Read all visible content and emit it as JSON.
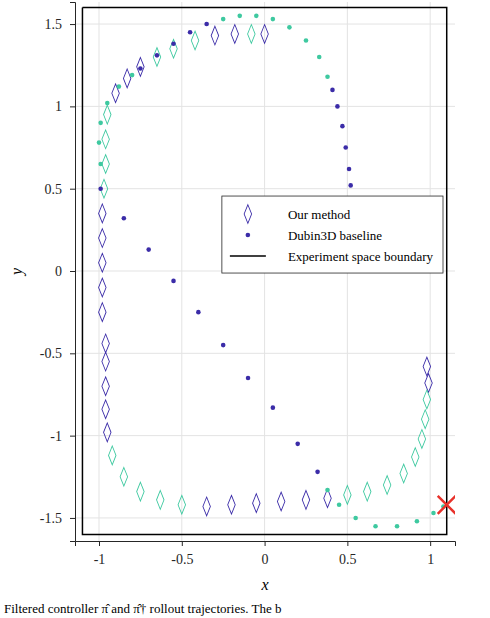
{
  "chart_data": {
    "type": "scatter",
    "x_label": "x",
    "y_label": "y",
    "caption": "Filtered controller π̂ and π̂† rollout trajectories. The b",
    "xlim": [
      -1.145,
      1.15
    ],
    "ylim": [
      -1.64,
      1.634
    ],
    "xticks": [
      -1,
      -0.5,
      0,
      0.5,
      1
    ],
    "yticks": [
      -1.5,
      -1,
      -0.5,
      0,
      0.5,
      1,
      1.5
    ],
    "grid": true,
    "legend": "center right",
    "series": [
      {
        "name": "Our method",
        "color": "#3b2ca8",
        "marker": "diamond",
        "x": [
          0.98,
          0.99,
          0.98,
          0.97,
          0.95,
          0.91,
          0.84,
          0.74,
          0.62,
          0.5,
          0.38,
          0.25,
          0.1,
          -0.05,
          -0.2,
          -0.35,
          -0.5,
          -0.63,
          -0.75,
          -0.85,
          -0.92,
          -0.95,
          -0.96,
          -0.96,
          -0.96,
          -0.96,
          -0.98,
          -0.98,
          -0.98,
          -0.98,
          -0.98,
          -0.97,
          -0.96,
          -0.96,
          -0.95,
          -0.9,
          -0.83,
          -0.75,
          -0.65,
          -0.55,
          -0.42,
          -0.3,
          -0.18,
          -0.08,
          0.0
        ],
        "values": [
          -0.58,
          -0.68,
          -0.78,
          -0.9,
          -1.02,
          -1.13,
          -1.23,
          -1.3,
          -1.34,
          -1.36,
          -1.38,
          -1.39,
          -1.4,
          -1.41,
          -1.42,
          -1.43,
          -1.42,
          -1.39,
          -1.34,
          -1.25,
          -1.12,
          -0.98,
          -0.84,
          -0.7,
          -0.55,
          -0.44,
          -0.25,
          -0.1,
          0.05,
          0.2,
          0.35,
          0.5,
          0.65,
          0.8,
          0.95,
          1.08,
          1.17,
          1.24,
          1.3,
          1.35,
          1.4,
          1.43,
          1.44,
          1.44,
          1.44
        ],
        "colors": [
          "#3b2ca8",
          "#3b2ca8",
          "#3ec9a0",
          "#3ec9a0",
          "#3ec9a0",
          "#3ec9a0",
          "#3ec9a0",
          "#3ec9a0",
          "#3ec9a0",
          "#3ec9a0",
          "#3b2ca8",
          "#3b2ca8",
          "#3b2ca8",
          "#3b2ca8",
          "#3b2ca8",
          "#3b2ca8",
          "#3ec9a0",
          "#3ec9a0",
          "#3ec9a0",
          "#3ec9a0",
          "#3ec9a0",
          "#3b2ca8",
          "#3b2ca8",
          "#3b2ca8",
          "#3b2ca8",
          "#3b2ca8",
          "#3b2ca8",
          "#3b2ca8",
          "#3b2ca8",
          "#3b2ca8",
          "#3b2ca8",
          "#3ec9a0",
          "#3ec9a0",
          "#3ec9a0",
          "#3ec9a0",
          "#3b2ca8",
          "#3b2ca8",
          "#3b2ca8",
          "#3ec9a0",
          "#3ec9a0",
          "#3ec9a0",
          "#3b2ca8",
          "#3b2ca8",
          "#3ec9a0",
          "#3b2ca8"
        ]
      },
      {
        "name": "Dubin3D baseline",
        "color": "#3b2ca8",
        "marker": "dot",
        "x": [
          0.52,
          0.51,
          0.49,
          0.47,
          0.44,
          0.41,
          0.38,
          0.33,
          0.25,
          0.15,
          0.05,
          -0.05,
          -0.15,
          -0.25,
          -0.35,
          -0.45,
          -0.55,
          -0.65,
          -0.75,
          -0.8,
          -0.88,
          -0.95,
          -0.99,
          -1.0,
          -0.99,
          -0.99,
          -0.85,
          -0.7,
          -0.55,
          -0.4,
          -0.25,
          -0.1,
          0.05,
          0.2,
          0.32,
          0.38,
          0.45,
          0.55,
          0.67,
          0.8,
          0.92,
          1.02,
          1.08
        ],
        "values": [
          0.52,
          0.62,
          0.75,
          0.88,
          1.0,
          1.1,
          1.18,
          1.3,
          1.4,
          1.48,
          1.53,
          1.55,
          1.55,
          1.53,
          1.5,
          1.45,
          1.38,
          1.31,
          1.23,
          1.19,
          1.12,
          1.02,
          0.9,
          0.78,
          0.65,
          0.5,
          0.32,
          0.13,
          -0.06,
          -0.25,
          -0.45,
          -0.65,
          -0.83,
          -1.05,
          -1.22,
          -1.33,
          -1.42,
          -1.5,
          -1.55,
          -1.55,
          -1.52,
          -1.47,
          -1.43
        ],
        "colors": [
          "#3b2ca8",
          "#3b2ca8",
          "#3b2ca8",
          "#3b2ca8",
          "#3b2ca8",
          "#3b2ca8",
          "#3ec9a0",
          "#3ec9a0",
          "#3ec9a0",
          "#3ec9a0",
          "#3ec9a0",
          "#3ec9a0",
          "#3ec9a0",
          "#3ec9a0",
          "#3b2ca8",
          "#3b2ca8",
          "#3b2ca8",
          "#3b2ca8",
          "#3b2ca8",
          "#3ec9a0",
          "#3ec9a0",
          "#3ec9a0",
          "#3ec9a0",
          "#3ec9a0",
          "#3ec9a0",
          "#3b2ca8",
          "#3b2ca8",
          "#3b2ca8",
          "#3b2ca8",
          "#3b2ca8",
          "#3b2ca8",
          "#3b2ca8",
          "#3b2ca8",
          "#3b2ca8",
          "#3b2ca8",
          "#3ec9a0",
          "#3ec9a0",
          "#3ec9a0",
          "#3ec9a0",
          "#3ec9a0",
          "#3ec9a0",
          "#3ec9a0",
          "#3ec9a0"
        ]
      },
      {
        "name": "Experiment space boundary",
        "type": "line",
        "color": "#000000",
        "line_style": "solid",
        "x": [
          -1.1,
          1.1,
          1.1,
          -1.1,
          -1.1
        ],
        "values": [
          1.6,
          1.6,
          -1.6,
          -1.6,
          1.6
        ]
      }
    ],
    "goal": {
      "x": 1.1,
      "y": -1.42,
      "color": "#e8312a",
      "marker": "x"
    }
  }
}
